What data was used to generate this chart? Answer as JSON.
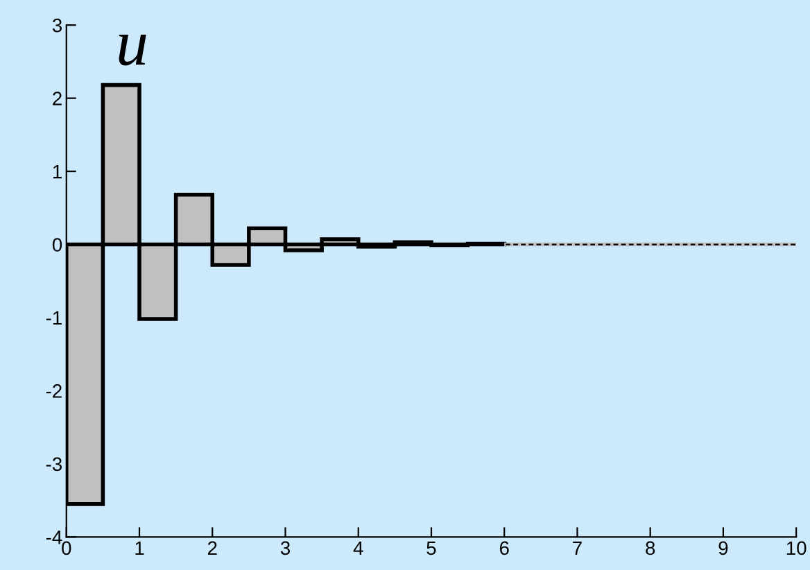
{
  "chart_data": {
    "type": "bar",
    "title": "u",
    "x": [
      0.25,
      0.75,
      1.25,
      1.75,
      2.25,
      2.75,
      3.25,
      3.75,
      4.25,
      4.75,
      5.25,
      5.75,
      6.25,
      6.75,
      7.25,
      7.75,
      8.25,
      8.75,
      9.25,
      9.75
    ],
    "values": [
      -3.55,
      2.18,
      -1.02,
      0.68,
      -0.28,
      0.22,
      -0.08,
      0.07,
      -0.03,
      0.03,
      -0.01,
      0.01,
      0,
      0,
      0,
      0,
      0,
      0,
      0,
      0
    ],
    "color": "#c0c0c0",
    "xlim": [
      0,
      10
    ],
    "xticks": [
      0,
      1,
      2,
      3,
      4,
      5,
      6,
      7,
      8,
      9,
      10
    ],
    "ylim": [
      -4,
      3
    ],
    "yticks": [
      -4,
      -3,
      -2,
      -1,
      0,
      1,
      2,
      3
    ],
    "ref_lines": [
      {
        "axis": "y",
        "value": 0,
        "line_style": "dashed",
        "color": "#000000"
      }
    ],
    "grid": false,
    "legend": false
  }
}
